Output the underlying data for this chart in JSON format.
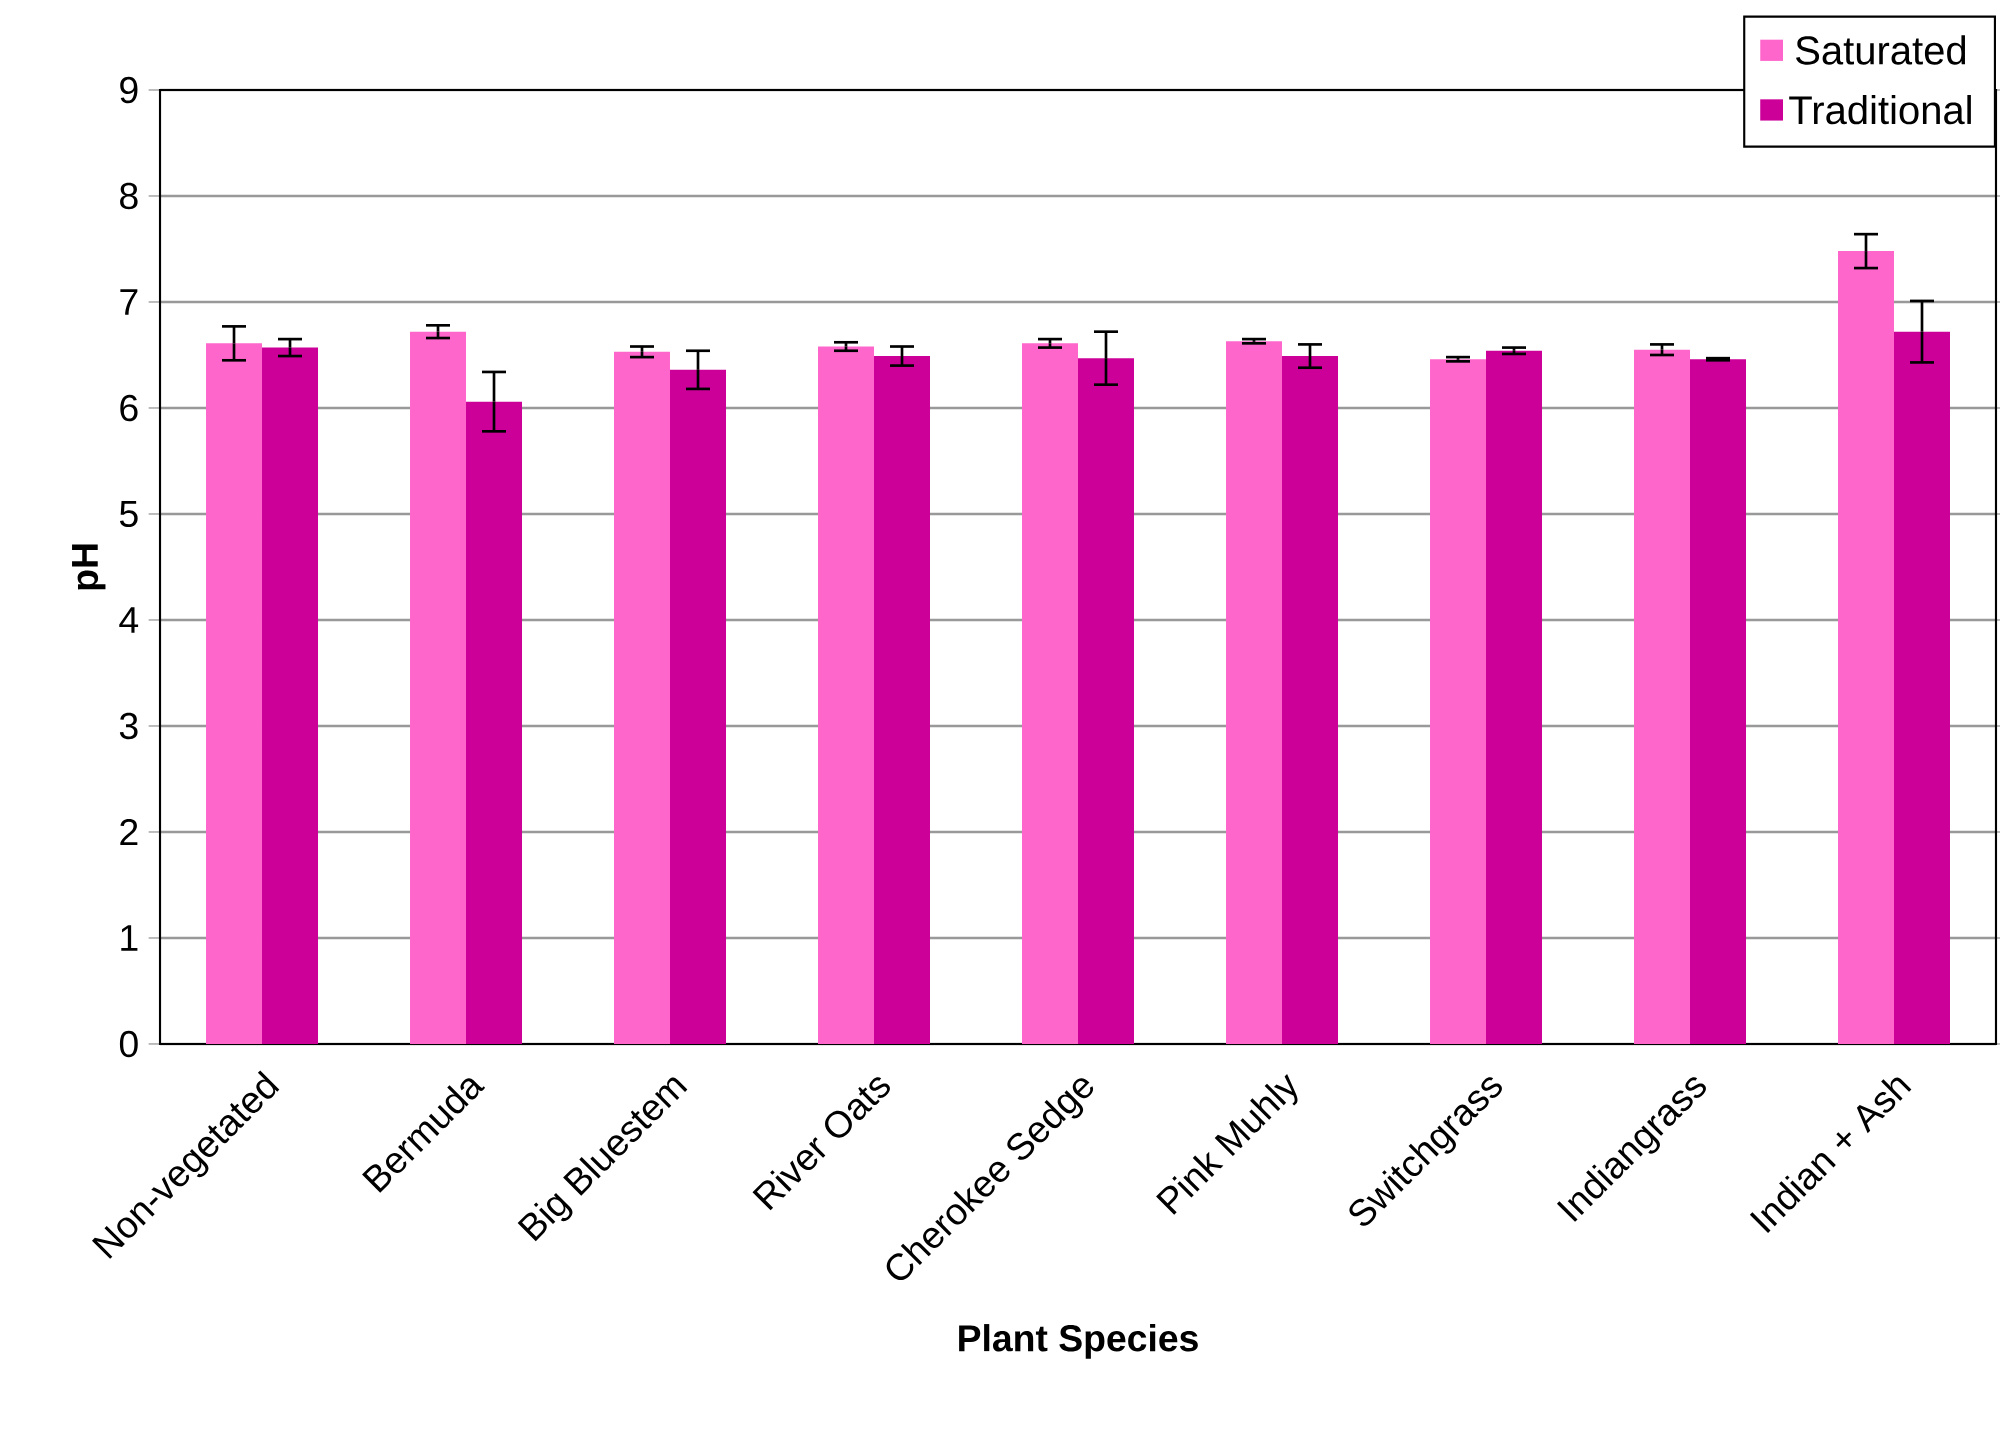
{
  "chart_data": {
    "type": "bar",
    "xlabel": "Plant Species",
    "ylabel": "pH",
    "categories": [
      "Non-vegetated",
      "Bermuda",
      "Big Bluestem",
      "River Oats",
      "Cherokee Sedge",
      "Pink Muhly",
      "Switchgrass",
      "Indiangrass",
      "Indian + Ash"
    ],
    "series": [
      {
        "name": "Saturated",
        "color": "#ff66cc",
        "values": [
          6.61,
          6.72,
          6.53,
          6.58,
          6.61,
          6.63,
          6.46,
          6.55,
          7.48
        ],
        "errors": [
          0.16,
          0.06,
          0.05,
          0.04,
          0.04,
          0.02,
          0.02,
          0.05,
          0.16
        ]
      },
      {
        "name": "Traditional",
        "color": "#cc0099",
        "values": [
          6.57,
          6.06,
          6.36,
          6.49,
          6.47,
          6.49,
          6.54,
          6.46,
          6.72
        ],
        "errors": [
          0.08,
          0.28,
          0.18,
          0.09,
          0.25,
          0.11,
          0.03,
          0.01,
          0.29
        ]
      }
    ],
    "ylim": [
      0,
      9
    ],
    "yticks": [
      0,
      1,
      2,
      3,
      4,
      5,
      6,
      7,
      8,
      9
    ],
    "grid": "y",
    "legend": "top right"
  }
}
